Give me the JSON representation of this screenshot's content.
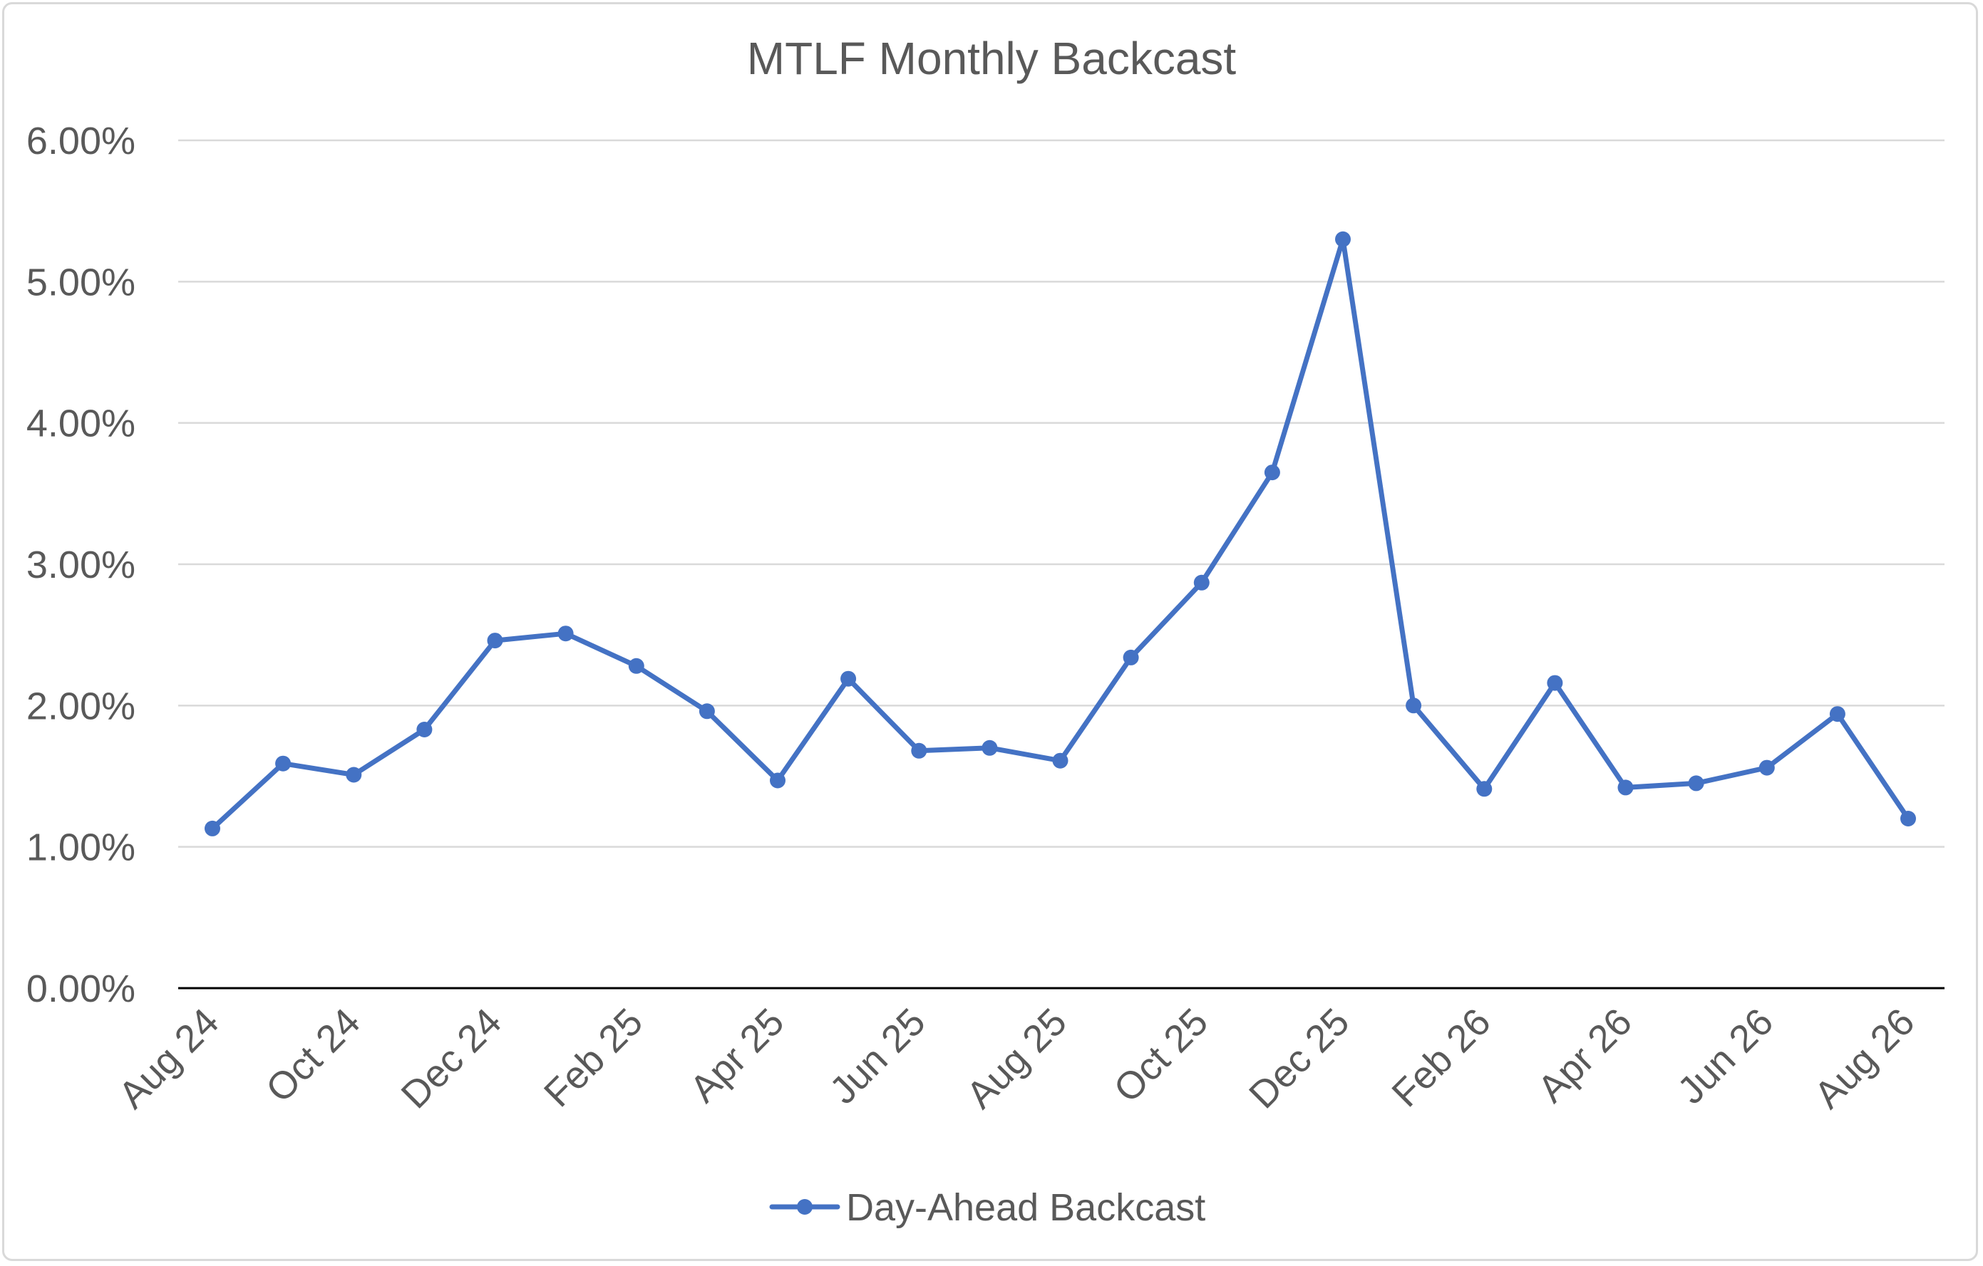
{
  "chart_data": {
    "type": "line",
    "title": "MTLF Monthly Backcast",
    "xlabel": "",
    "ylabel": "",
    "ylim": [
      0,
      6
    ],
    "y_ticks": [
      "0.00%",
      "1.00%",
      "2.00%",
      "3.00%",
      "4.00%",
      "5.00%",
      "6.00%"
    ],
    "x_tick_labels": [
      "Aug 24",
      "Oct 24",
      "Dec 24",
      "Feb 25",
      "Apr 25",
      "Jun 25",
      "Aug 25",
      "Oct 25",
      "Dec 25",
      "Feb 26",
      "Apr 26",
      "Jun 26",
      "Aug 26"
    ],
    "categories": [
      "Aug 24",
      "Sep 24",
      "Oct 24",
      "Nov 24",
      "Dec 24",
      "Jan 25",
      "Feb 25",
      "Mar 25",
      "Apr 25",
      "May 25",
      "Jun 25",
      "Jul 25",
      "Aug 25",
      "Sep 25",
      "Oct 25",
      "Nov 25",
      "Dec 25",
      "Jan 26",
      "Feb 26",
      "Mar 26",
      "Apr 26",
      "May 26",
      "Jun 26",
      "Jul 26",
      "Aug 26"
    ],
    "series": [
      {
        "name": "Day-Ahead Backcast",
        "color": "#4472c4",
        "values": [
          1.13,
          1.59,
          1.51,
          1.83,
          2.46,
          2.51,
          2.28,
          1.96,
          1.47,
          2.19,
          1.68,
          1.7,
          1.61,
          2.34,
          2.87,
          3.65,
          5.3,
          2.0,
          1.41,
          2.16,
          1.42,
          1.45,
          1.56,
          1.94,
          1.2
        ]
      }
    ],
    "grid": true,
    "legend": "bottom",
    "colors": {
      "grid": "#d9d9d9",
      "axis": "#000000",
      "text": "#595959"
    }
  }
}
